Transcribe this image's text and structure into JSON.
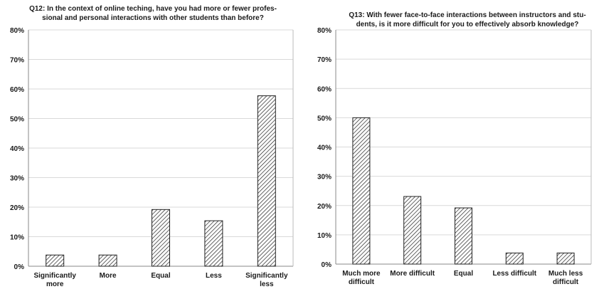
{
  "chart_data": [
    {
      "type": "bar",
      "title_lines": [
        "Q12: In the context of online teching, have you had more or fewer profes-",
        "sional and personal interactions with other students than before?"
      ],
      "categories": [
        [
          "Significantly",
          "more"
        ],
        [
          "More"
        ],
        [
          "Equal"
        ],
        [
          "Less"
        ],
        [
          "Significantly",
          "less"
        ]
      ],
      "values": [
        3.8,
        3.8,
        19.2,
        15.4,
        57.7
      ],
      "yticks": [
        "0%",
        "10%",
        "20%",
        "30%",
        "40%",
        "50%",
        "60%",
        "70%",
        "80%"
      ],
      "ylim": [
        0,
        80
      ],
      "grid": true,
      "bar_fill": "hatched",
      "bar_stroke": "#222222",
      "grid_color": "#d9d9d9"
    },
    {
      "type": "bar",
      "title_lines": [
        "Q13: With fewer face-to-face interactions between instructors and stu-",
        "dents, is it more difficult for you to effectively absorb knowledge?"
      ],
      "categories": [
        [
          "Much more",
          "difficult"
        ],
        [
          "More difficult"
        ],
        [
          "Equal"
        ],
        [
          "Less difficult"
        ],
        [
          "Much less",
          "difficult"
        ]
      ],
      "values": [
        50.0,
        23.1,
        19.2,
        3.8,
        3.8
      ],
      "yticks": [
        "0%",
        "10%",
        "20%",
        "30%",
        "40%",
        "50%",
        "60%",
        "70%",
        "80%"
      ],
      "ylim": [
        0,
        80
      ],
      "grid": true,
      "bar_fill": "hatched",
      "bar_stroke": "#222222",
      "grid_color": "#d9d9d9"
    }
  ]
}
